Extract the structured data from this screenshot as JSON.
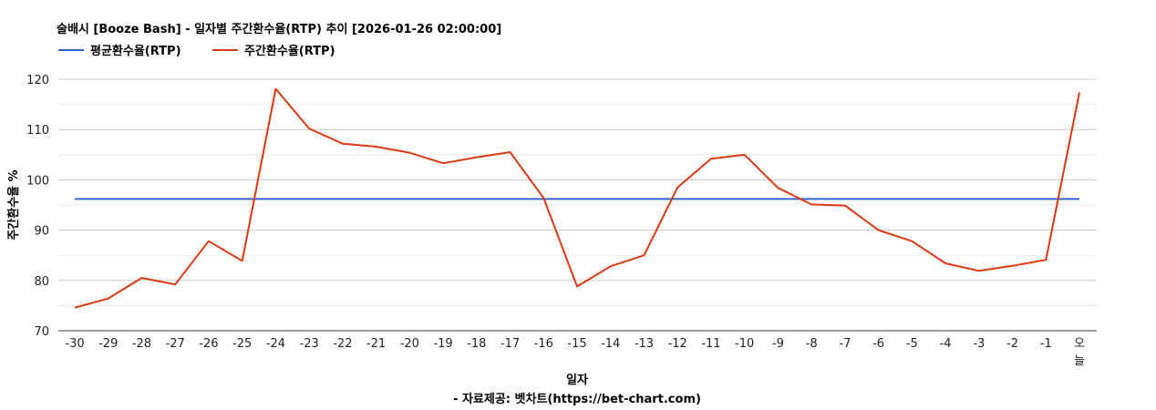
{
  "chart_data": {
    "type": "line",
    "title": "술배시 [Booze Bash] - 일자별 주간환수율(RTP) 추이 [2026-01-26 02:00:00]",
    "xlabel": "일자",
    "ylabel": "주간환수율 %",
    "source": "- 자료제공: 벳차트(https://bet-chart.com)",
    "ylim": [
      70,
      120
    ],
    "yticks": [
      70,
      80,
      90,
      100,
      110,
      120
    ],
    "grid": true,
    "legend_position": "top-left",
    "categories": [
      "-30",
      "-29",
      "-28",
      "-27",
      "-26",
      "-25",
      "-24",
      "-23",
      "-22",
      "-21",
      "-20",
      "-19",
      "-18",
      "-17",
      "-16",
      "-15",
      "-14",
      "-13",
      "-12",
      "-11",
      "-10",
      "-9",
      "-8",
      "-7",
      "-6",
      "-5",
      "-4",
      "-3",
      "-2",
      "-1",
      "오늘"
    ],
    "series": [
      {
        "name": "평균환수율(RTP)",
        "color": "#3366cc",
        "values": [
          96.2,
          96.2,
          96.2,
          96.2,
          96.2,
          96.2,
          96.2,
          96.2,
          96.2,
          96.2,
          96.2,
          96.2,
          96.2,
          96.2,
          96.2,
          96.2,
          96.2,
          96.2,
          96.2,
          96.2,
          96.2,
          96.2,
          96.2,
          96.2,
          96.2,
          96.2,
          96.2,
          96.2,
          96.2,
          96.2,
          96.2
        ]
      },
      {
        "name": "주간환수율(RTP)",
        "color": "#dc3912",
        "values": [
          74.6,
          76.4,
          80.5,
          79.2,
          87.8,
          83.9,
          118.1,
          110.2,
          107.2,
          106.6,
          105.4,
          103.3,
          104.5,
          105.5,
          96.4,
          78.8,
          82.8,
          85.0,
          98.5,
          104.2,
          105.0,
          98.4,
          95.1,
          94.9,
          90.0,
          87.8,
          83.4,
          81.9,
          82.9,
          84.1,
          117.4
        ]
      }
    ]
  }
}
